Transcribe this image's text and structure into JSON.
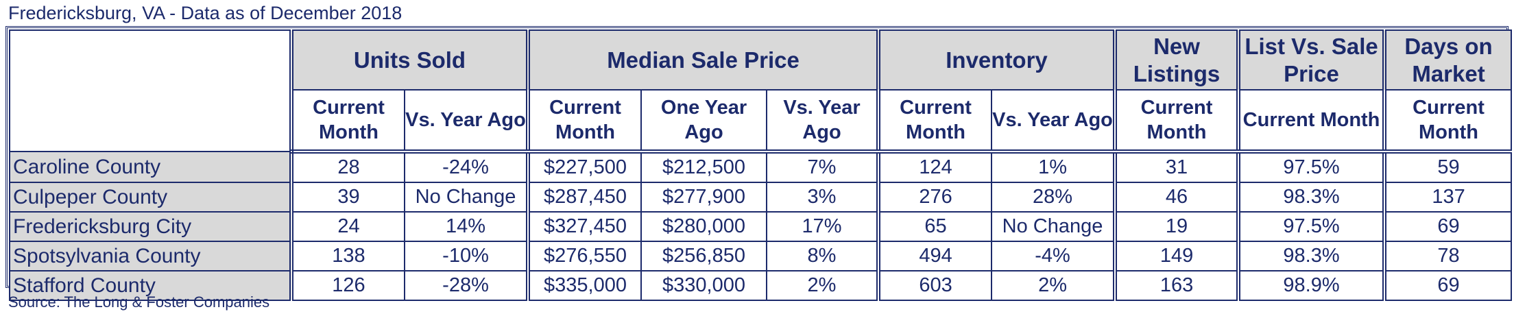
{
  "title": "Fredericksburg, VA - Data as of December 2018",
  "source": "Source: The Long & Foster Companies",
  "groups": {
    "units_sold": "Units Sold",
    "median_sale_price": "Median Sale Price",
    "inventory": "Inventory",
    "new_listings": "New Listings",
    "list_vs_sale": "List Vs. Sale Price",
    "days_on_market": "Days on Market"
  },
  "subheaders": {
    "current_month": "Current Month",
    "vs_year_ago": "Vs. Year Ago",
    "one_year_ago": "One Year Ago"
  },
  "rows": [
    {
      "name": "Caroline County",
      "units_current": "28",
      "units_vs": "-24%",
      "price_current": "$227,500",
      "price_prev": "$212,500",
      "price_vs": "7%",
      "inv_current": "124",
      "inv_vs": "1%",
      "new_listings": "31",
      "list_vs_sale": "97.5%",
      "days": "59"
    },
    {
      "name": "Culpeper County",
      "units_current": "39",
      "units_vs": "No Change",
      "price_current": "$287,450",
      "price_prev": "$277,900",
      "price_vs": "3%",
      "inv_current": "276",
      "inv_vs": "28%",
      "new_listings": "46",
      "list_vs_sale": "98.3%",
      "days": "137"
    },
    {
      "name": "Fredericksburg City",
      "units_current": "24",
      "units_vs": "14%",
      "price_current": "$327,450",
      "price_prev": "$280,000",
      "price_vs": "17%",
      "inv_current": "65",
      "inv_vs": "No Change",
      "new_listings": "19",
      "list_vs_sale": "97.5%",
      "days": "69"
    },
    {
      "name": "Spotsylvania County",
      "units_current": "138",
      "units_vs": "-10%",
      "price_current": "$276,550",
      "price_prev": "$256,850",
      "price_vs": "8%",
      "inv_current": "494",
      "inv_vs": "-4%",
      "new_listings": "149",
      "list_vs_sale": "98.3%",
      "days": "78"
    },
    {
      "name": "Stafford County",
      "units_current": "126",
      "units_vs": "-28%",
      "price_current": "$335,000",
      "price_prev": "$330,000",
      "price_vs": "2%",
      "inv_current": "603",
      "inv_vs": "2%",
      "new_listings": "163",
      "list_vs_sale": "98.9%",
      "days": "69"
    }
  ]
}
